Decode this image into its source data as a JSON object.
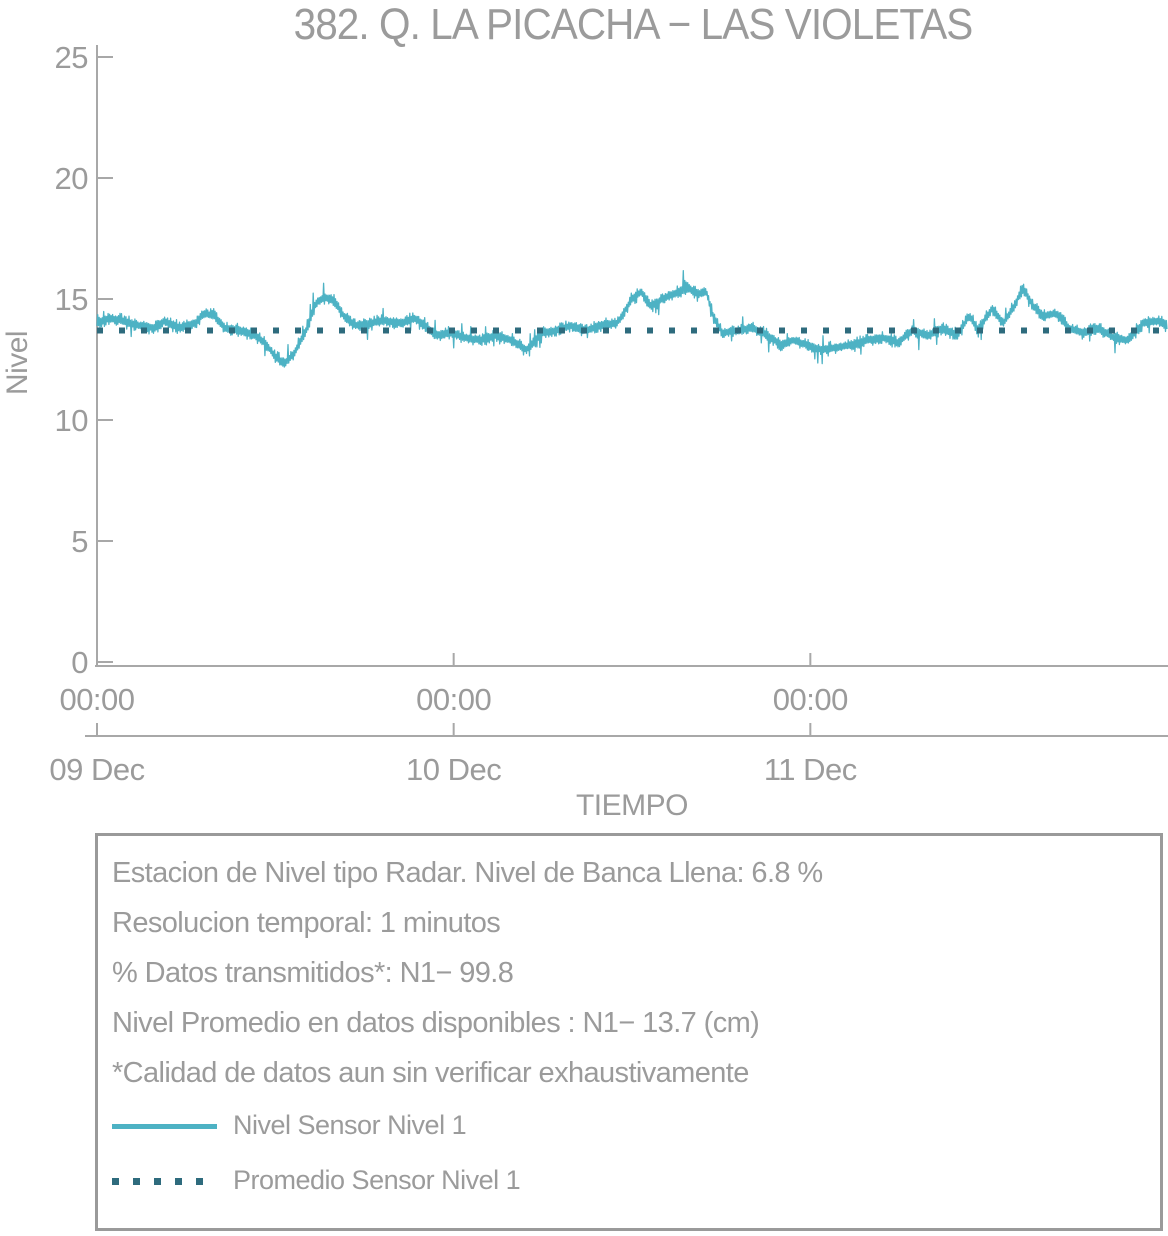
{
  "title": "382. Q. LA PICACHA − LAS VIOLETAS",
  "colors": {
    "background": "#ffffff",
    "text_gray": "#9b9b9b",
    "axis_gray": "#a8a8a8",
    "series_teal": "#4db2c4",
    "average_dark_teal": "#2e6b7d",
    "box_border_gray": "#9a9a9a"
  },
  "chart_data": {
    "type": "line",
    "title": "382. Q. LA PICACHA − LAS VIOLETAS",
    "xlabel": "TIEMPO",
    "ylabel": "Nivel",
    "ylim": [
      0,
      25
    ],
    "yticks": [
      0,
      5,
      10,
      15,
      20,
      25
    ],
    "x_range_hours": [
      0,
      72
    ],
    "x_ticks": [
      {
        "hour": 0,
        "time_label": "00:00",
        "date_label": "09 Dec"
      },
      {
        "hour": 24,
        "time_label": "00:00",
        "date_label": "10 Dec"
      },
      {
        "hour": 48,
        "time_label": "00:00",
        "date_label": "11 Dec"
      }
    ],
    "grid": false,
    "legend_position": "bottom-box",
    "series": [
      {
        "name": "Nivel Sensor Nivel 1",
        "style": "noisy-line",
        "color": "#4db2c4",
        "units": "cm",
        "sampling": "1 minute",
        "noise_amplitude": 0.3,
        "trend_points_hour_value": [
          [
            0,
            14.0
          ],
          [
            0.8,
            14.2
          ],
          [
            1.8,
            14.1
          ],
          [
            2.8,
            13.9
          ],
          [
            3.9,
            13.8
          ],
          [
            4.5,
            14.1
          ],
          [
            5.5,
            13.8
          ],
          [
            6.6,
            14.0
          ],
          [
            7.2,
            14.4
          ],
          [
            7.9,
            14.3
          ],
          [
            8.6,
            13.8
          ],
          [
            9.6,
            13.7
          ],
          [
            10.6,
            13.5
          ],
          [
            11.3,
            13.2
          ],
          [
            12.0,
            12.6
          ],
          [
            12.6,
            12.3
          ],
          [
            13.3,
            12.8
          ],
          [
            14.0,
            13.6
          ],
          [
            14.7,
            14.8
          ],
          [
            15.3,
            15.1
          ],
          [
            16.0,
            14.9
          ],
          [
            16.7,
            14.2
          ],
          [
            17.4,
            13.9
          ],
          [
            18.4,
            14.0
          ],
          [
            19.4,
            14.1
          ],
          [
            20.4,
            14.0
          ],
          [
            21.4,
            14.2
          ],
          [
            22.1,
            13.9
          ],
          [
            22.8,
            13.5
          ],
          [
            23.8,
            13.6
          ],
          [
            24.8,
            13.4
          ],
          [
            25.8,
            13.3
          ],
          [
            26.8,
            13.5
          ],
          [
            27.9,
            13.3
          ],
          [
            28.9,
            12.9
          ],
          [
            29.9,
            13.6
          ],
          [
            30.9,
            13.7
          ],
          [
            31.9,
            13.9
          ],
          [
            32.9,
            13.7
          ],
          [
            33.9,
            13.9
          ],
          [
            35.0,
            14.0
          ],
          [
            36.0,
            15.0
          ],
          [
            36.6,
            15.3
          ],
          [
            37.3,
            14.7
          ],
          [
            38.0,
            15.0
          ],
          [
            38.8,
            15.2
          ],
          [
            39.7,
            15.5
          ],
          [
            40.4,
            15.2
          ],
          [
            41.0,
            15.3
          ],
          [
            41.5,
            14.2
          ],
          [
            42.1,
            13.6
          ],
          [
            43.1,
            13.7
          ],
          [
            44.1,
            13.8
          ],
          [
            45.1,
            13.5
          ],
          [
            46.1,
            13.1
          ],
          [
            46.8,
            13.3
          ],
          [
            47.8,
            13.1
          ],
          [
            48.8,
            12.9
          ],
          [
            49.8,
            13.0
          ],
          [
            50.8,
            13.1
          ],
          [
            51.9,
            13.3
          ],
          [
            52.9,
            13.4
          ],
          [
            53.9,
            13.2
          ],
          [
            54.9,
            13.7
          ],
          [
            55.9,
            13.5
          ],
          [
            56.9,
            13.8
          ],
          [
            57.9,
            13.5
          ],
          [
            58.7,
            14.3
          ],
          [
            59.3,
            13.7
          ],
          [
            60.2,
            14.6
          ],
          [
            61.0,
            14.0
          ],
          [
            61.8,
            14.8
          ],
          [
            62.3,
            15.5
          ],
          [
            63.0,
            14.7
          ],
          [
            63.7,
            14.3
          ],
          [
            64.5,
            14.4
          ],
          [
            65.4,
            13.8
          ],
          [
            66.4,
            13.6
          ],
          [
            67.4,
            13.8
          ],
          [
            68.4,
            13.4
          ],
          [
            69.4,
            13.3
          ],
          [
            70.4,
            14.0
          ],
          [
            71.4,
            14.1
          ],
          [
            72.0,
            13.9
          ]
        ]
      },
      {
        "name": "Promedio Sensor Nivel 1",
        "style": "dotted-horizontal",
        "color": "#2e6b7d",
        "value": 13.7
      }
    ]
  },
  "info_box": {
    "lines": [
      "Estacion de Nivel tipo Radar. Nivel de Banca Llena:  6.8 %",
      "Resolucion temporal: 1 minutos",
      "% Datos transmitidos*: N1− 99.8",
      "Nivel Promedio en datos disponibles : N1− 13.7 (cm)",
      "*Calidad de datos aun sin verificar exhaustivamente"
    ],
    "legend": [
      {
        "swatch": "solid-line",
        "color": "#4db2c4",
        "label": "Nivel Sensor Nivel 1"
      },
      {
        "swatch": "dotted-line",
        "color": "#2e6b7d",
        "label": "Promedio Sensor Nivel 1"
      }
    ]
  }
}
